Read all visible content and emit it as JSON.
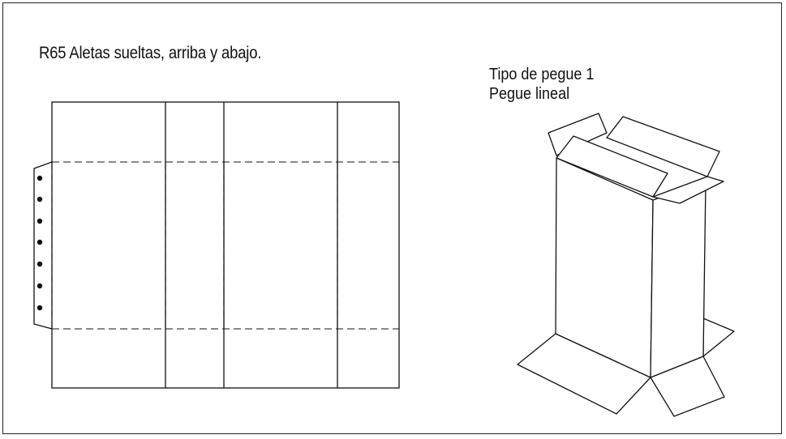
{
  "title": "R65 Aletas sueltas, arriba y abajo.",
  "glue_type": "Tipo de pegue 1",
  "glue_style": "Pegue lineal",
  "colors": {
    "line": "#111111",
    "background": "#ffffff"
  }
}
